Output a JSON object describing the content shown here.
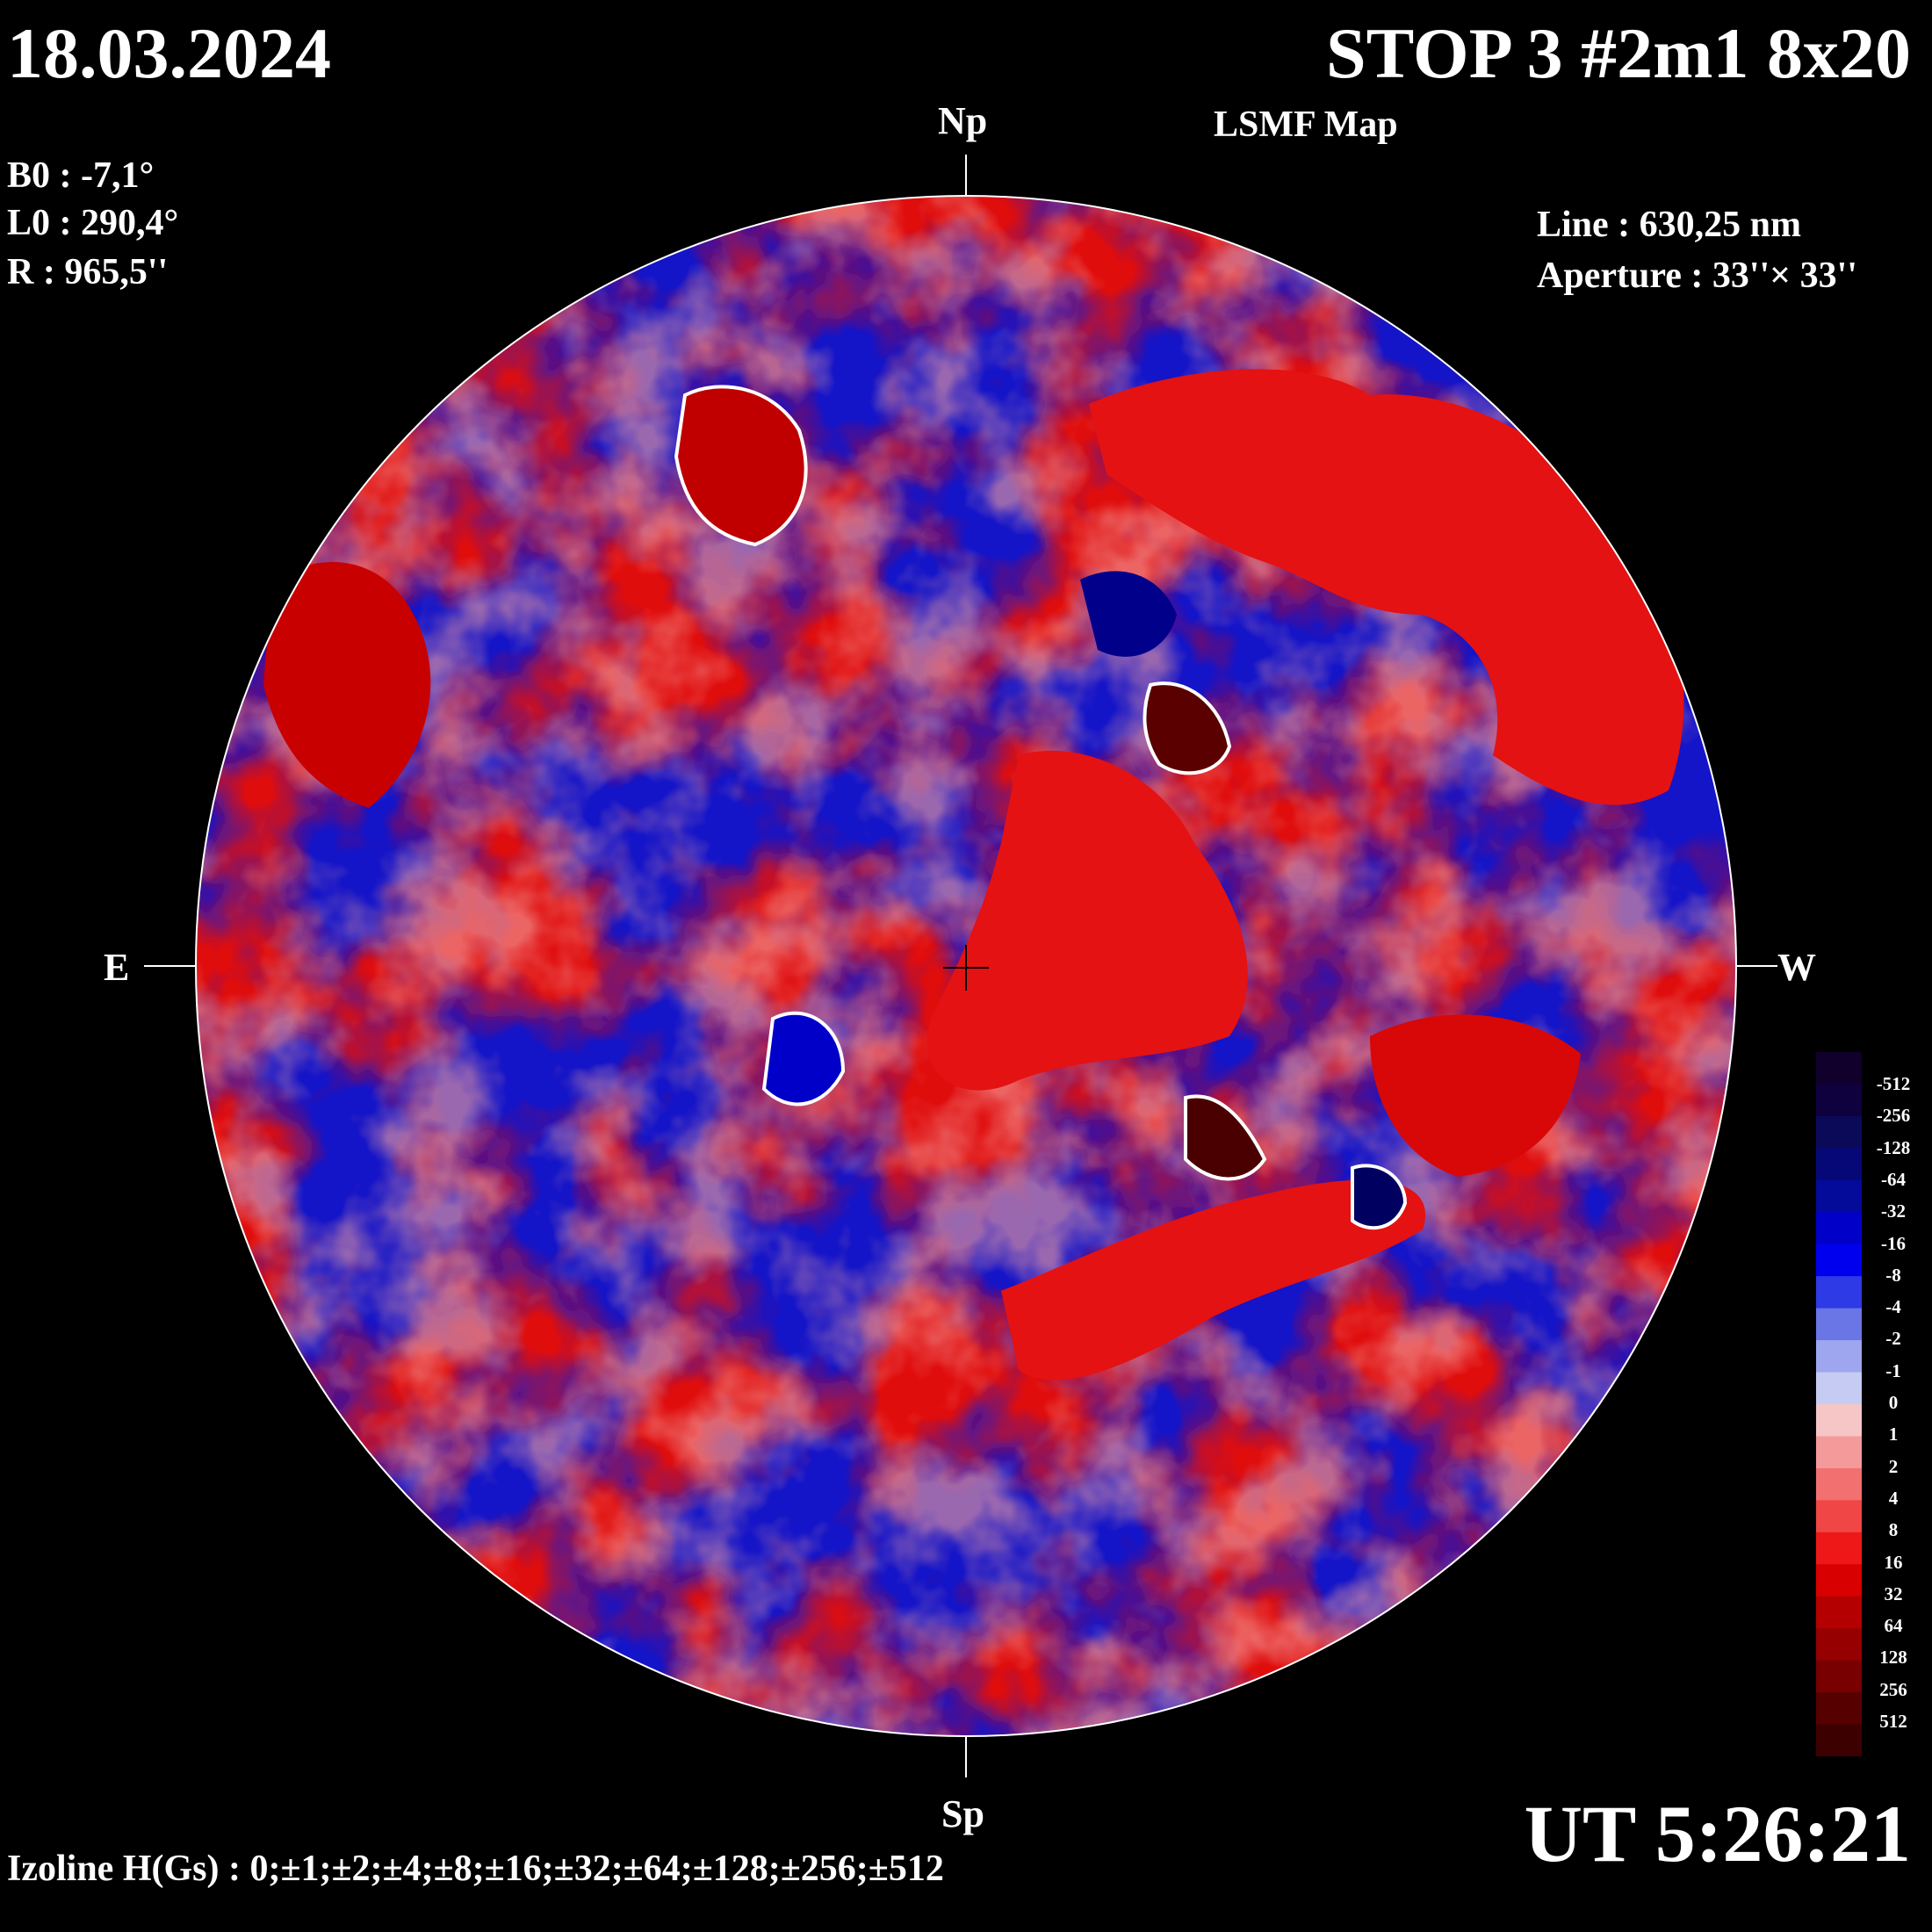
{
  "header": {
    "date": "18.03.2024",
    "title": "STOP 3 #2m1 8x20",
    "subtitle": "LSMF  Map"
  },
  "params": {
    "b0": "B0 : -7,1°",
    "l0": "L0 : 290,4°",
    "r": "R  : 965,5''"
  },
  "instrument": {
    "line": "Line :  630,25 nm",
    "aperture": "Aperture : 33''× 33''"
  },
  "time": "UT 5:26:21",
  "izoline": "Izoline H(Gs) : 0;±1;±2;±4;±8;±16;±32;±64;±128;±256;±512",
  "compass": {
    "north": "Np",
    "south": "Sp",
    "east": "E",
    "west": "W"
  },
  "legend": {
    "labels": [
      "-512",
      "-256",
      "-128",
      "-64",
      "-32",
      "-16",
      "-8",
      "-4",
      "-2",
      "-1",
      "0",
      "1",
      "2",
      "4",
      "8",
      "16",
      "32",
      "64",
      "128",
      "256",
      "512"
    ],
    "negative_colors": [
      "#10002b",
      "#0f003e",
      "#0b0a58",
      "#060877",
      "#040a99",
      "#0000c8",
      "#0000ee",
      "#2d3ae6",
      "#6a75e6",
      "#9da6ee",
      "#c6cbf4"
    ],
    "positive_colors": [
      "#f6c6c6",
      "#f49a9a",
      "#f27070",
      "#f04646",
      "#ee1818",
      "#d80000",
      "#b40000",
      "#960000",
      "#780000",
      "#560000",
      "#3c0000"
    ]
  },
  "map_colors": {
    "negative": "#1414c8",
    "positive": "#e01010",
    "background": "#000000",
    "contour": "#ffffff"
  }
}
